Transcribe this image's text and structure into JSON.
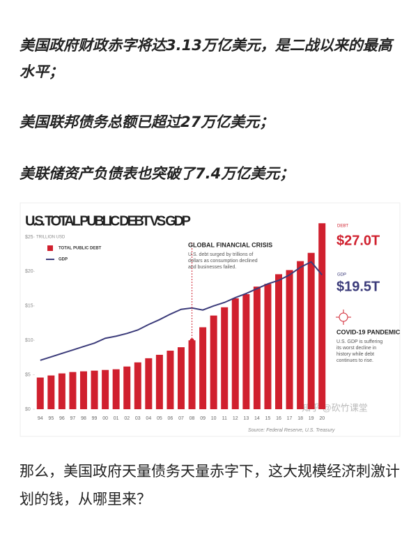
{
  "paragraphs": [
    "美国政府财政赤字将达3.13万亿美元，是二战以来的最高水平；",
    "美国联邦债务总额已超过27万亿美元；",
    "美联储资产负债表也突破了7.4万亿美元；"
  ],
  "closing": "那么，美国政府天量债务天量赤字下，这大规模经济刺激计划的钱，从哪里来？",
  "watermark": "知乎 @砍竹课堂",
  "chart_data": {
    "type": "bar_line",
    "title": "U.S. TOTAL PUBLIC DEBT VS GDP",
    "y_label": "TRILLION USD",
    "categories": [
      "94",
      "95",
      "96",
      "97",
      "98",
      "99",
      "00",
      "01",
      "02",
      "03",
      "04",
      "05",
      "06",
      "07",
      "08",
      "09",
      "10",
      "11",
      "12",
      "13",
      "14",
      "15",
      "16",
      "17",
      "18",
      "19",
      "20"
    ],
    "series": [
      {
        "name": "TOTAL PUBLIC DEBT",
        "kind": "bar",
        "color": "#d0202e",
        "values": [
          4.6,
          4.9,
          5.2,
          5.4,
          5.5,
          5.6,
          5.7,
          5.8,
          6.2,
          6.8,
          7.4,
          7.9,
          8.5,
          9.0,
          10.0,
          11.9,
          13.6,
          14.8,
          16.1,
          16.7,
          17.8,
          18.2,
          19.6,
          20.2,
          21.5,
          22.7,
          27.0
        ]
      },
      {
        "name": "GDP",
        "kind": "line",
        "color": "#3b3b7a",
        "values": [
          7.1,
          7.6,
          8.1,
          8.6,
          9.1,
          9.6,
          10.3,
          10.6,
          11.0,
          11.5,
          12.3,
          13.0,
          13.8,
          14.5,
          14.7,
          14.4,
          15.0,
          15.5,
          16.2,
          16.8,
          17.5,
          18.2,
          18.7,
          19.5,
          20.6,
          21.4,
          19.5
        ]
      }
    ],
    "ylim": [
      0,
      25
    ],
    "yticks": [
      {
        "value": 0,
        "label": "$0"
      },
      {
        "value": 5,
        "label": "$5"
      },
      {
        "value": 10,
        "label": "$10"
      },
      {
        "value": 15,
        "label": "$15"
      },
      {
        "value": 20,
        "label": "$20"
      },
      {
        "value": 25,
        "label": "$25"
      }
    ],
    "grid": false,
    "callouts": [
      {
        "tag": "DEBT",
        "label": "$27.0T"
      },
      {
        "tag": "GDP",
        "label": "$19.5T"
      }
    ],
    "annotations": [
      {
        "title": "GLOBAL FINANCIAL CRISIS",
        "lines": [
          "U.S. debt surged by trillions of",
          "dollars as consumption declined",
          "and businesses failed."
        ]
      },
      {
        "title": "COVID-19 PANDEMIC",
        "lines": [
          "U.S. GDP is suffering",
          "its worst decline in",
          "history while debt",
          "continues to rise."
        ]
      }
    ],
    "source": "Source: Federal Reserve, U.S. Treasury"
  }
}
